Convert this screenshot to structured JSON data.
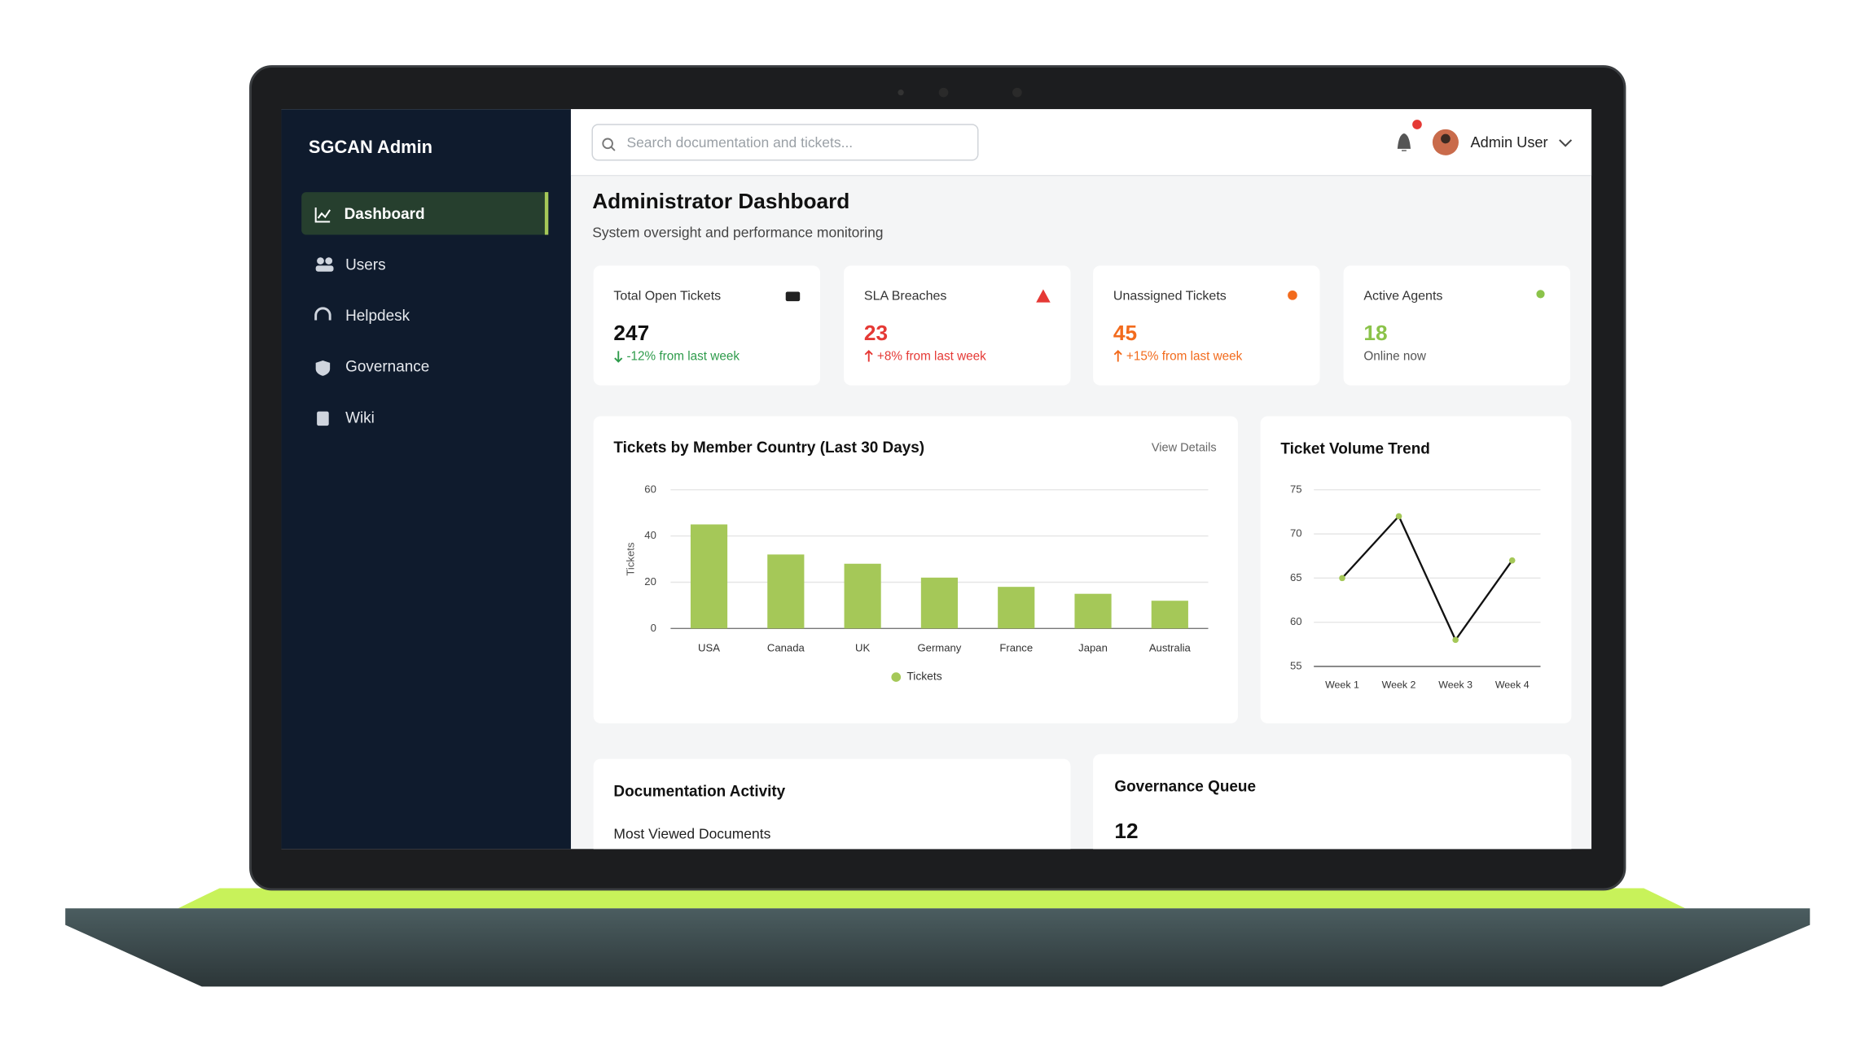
{
  "sidebar": {
    "brand": "SGCAN Admin",
    "nav": [
      "Dashboard",
      "Users",
      "Helpdesk",
      "Governance",
      "Wiki"
    ]
  },
  "header": {
    "search_placeholder": "Search documentation and tickets...",
    "user": "Admin User"
  },
  "page": {
    "title": "Administrator Dashboard",
    "subtitle": "System oversight and performance monitoring"
  },
  "stats": [
    {
      "label": "Total Open Tickets",
      "value": 247,
      "note": "-12% from last week"
    },
    {
      "label": "SLA Breaches",
      "value": 23,
      "note": "+8% from last week"
    },
    {
      "label": "Unassigned Tickets",
      "value": 45,
      "note": "+15% from last week"
    },
    {
      "label": "Active Agents",
      "value": 18,
      "note": "Online now"
    }
  ],
  "charts": [
    {
      "type": "bar",
      "title": "Tickets by Member Country (Last 30 Days)",
      "link": "View Details",
      "y_label": "Tickets",
      "categories": [
        "USA",
        "Canada",
        "UK",
        "Germany",
        "France",
        "Japan",
        "Australia"
      ],
      "series": [
        {
          "name": "Tickets",
          "color": "#a5c858",
          "values": [
            45,
            32,
            28,
            22,
            18,
            15,
            12
          ]
        }
      ],
      "ylim": [
        0,
        60
      ],
      "yticks": [
        0,
        20,
        40,
        60
      ],
      "grid": true
    },
    {
      "type": "line",
      "title": "Ticket Volume Trend",
      "categories": [
        "Week 1",
        "Week 2",
        "Week 3",
        "Week 4"
      ],
      "values": [
        65,
        72,
        58,
        67
      ],
      "color": "#111111",
      "marker_color": "#a5c858",
      "ylim": [
        55,
        75
      ],
      "yticks": [
        55,
        60,
        65,
        70,
        75
      ],
      "grid": true
    }
  ],
  "panels": {
    "documentation": {
      "title": "Documentation Activity",
      "subtitle": "Most Viewed Documents"
    },
    "governance": {
      "title": "Governance Queue",
      "value": 12
    }
  }
}
